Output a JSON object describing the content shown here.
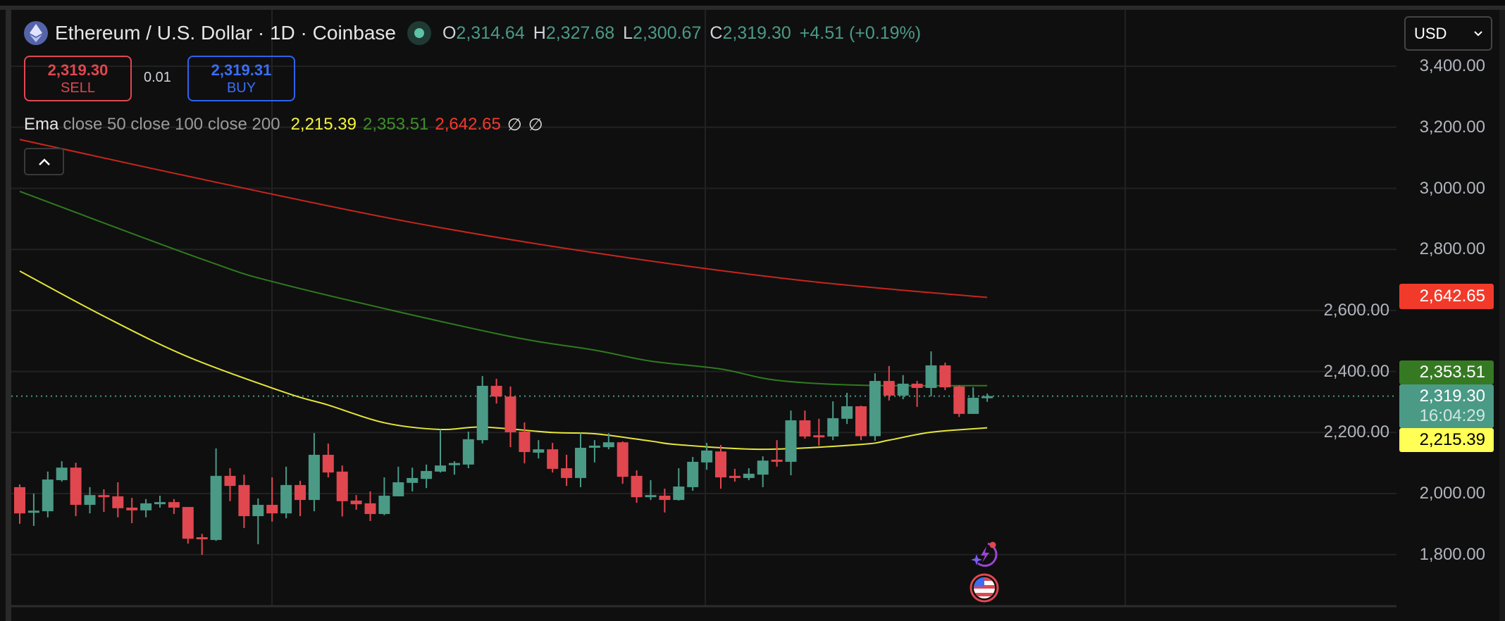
{
  "header": {
    "title": "Ethereum / U.S. Dollar · 1D · Coinbase",
    "ohlc": [
      {
        "key": "O",
        "value": "2,314.64"
      },
      {
        "key": "H",
        "value": "2,327.68"
      },
      {
        "key": "L",
        "value": "2,300.67"
      },
      {
        "key": "C",
        "value": "2,319.30"
      }
    ],
    "change": "+4.51 (+0.19%)"
  },
  "trade": {
    "sell_price": "2,319.30",
    "sell_label": "SELL",
    "spread": "0.01",
    "buy_price": "2,319.31",
    "buy_label": "BUY"
  },
  "ema_legend": {
    "name": "Ema",
    "params": "close 50 close 100 close 200",
    "values": [
      "2,215.39",
      "2,353.51",
      "2,642.65"
    ],
    "extra": [
      "∅",
      "∅"
    ]
  },
  "collapse_icon": "chevron-up",
  "currency": {
    "selected": "USD"
  },
  "price_axis": {
    "ticks": [
      "3,400.00",
      "3,200.00",
      "3,000.00",
      "2,800.00",
      "2,600.00",
      "2,400.00",
      "2,200.00",
      "2,000.00",
      "1,800.00"
    ]
  },
  "badges": {
    "ema200": "2,642.65",
    "ema100": "2,353.51",
    "last_price": "2,319.30",
    "countdown": "16:04:29",
    "ema50": "2,215.39"
  },
  "colors": {
    "up": "#4a9a86",
    "down": "#e0474f",
    "ema50": "#e5e53a",
    "ema100": "#2f7a1f",
    "ema200": "#c7261e",
    "badge_ema200": "#f23a2a",
    "badge_ema100": "#357a22",
    "badge_last": "#4a9a86",
    "badge_ema50": "#ffff56"
  },
  "chart_data": {
    "type": "candlestick",
    "interval": "1D",
    "ylim": [
      1600,
      3450
    ],
    "last_price": 2319.3,
    "candles_ohlc": [
      [
        2021,
        2030,
        1901,
        1935
      ],
      [
        1938,
        2000,
        1894,
        1944
      ],
      [
        1942,
        2072,
        1922,
        2046
      ],
      [
        2044,
        2106,
        2039,
        2085
      ],
      [
        2085,
        2101,
        1926,
        1963
      ],
      [
        1963,
        2021,
        1935,
        1995
      ],
      [
        1995,
        2014,
        1940,
        1989
      ],
      [
        1991,
        2037,
        1922,
        1952
      ],
      [
        1954,
        1986,
        1903,
        1945
      ],
      [
        1945,
        1982,
        1922,
        1968
      ],
      [
        1966,
        1993,
        1954,
        1972
      ],
      [
        1972,
        1982,
        1933,
        1954
      ],
      [
        1956,
        1956,
        1836,
        1852
      ],
      [
        1857,
        1868,
        1799,
        1852
      ],
      [
        1848,
        2148,
        1845,
        2058
      ],
      [
        2058,
        2083,
        1975,
        2025
      ],
      [
        2028,
        2062,
        1887,
        1926
      ],
      [
        1926,
        1984,
        1834,
        1963
      ],
      [
        1963,
        2053,
        1908,
        1935
      ],
      [
        1935,
        2088,
        1919,
        2028
      ],
      [
        2028,
        2042,
        1926,
        1979
      ],
      [
        1979,
        2198,
        1942,
        2127
      ],
      [
        2127,
        2164,
        2053,
        2069
      ],
      [
        2072,
        2092,
        1925,
        1975
      ],
      [
        1977,
        1995,
        1947,
        1965
      ],
      [
        1968,
        2007,
        1910,
        1933
      ],
      [
        1933,
        2053,
        1929,
        1993
      ],
      [
        1991,
        2088,
        1991,
        2037
      ],
      [
        2035,
        2085,
        2007,
        2051
      ],
      [
        2048,
        2095,
        2018,
        2074
      ],
      [
        2072,
        2210,
        2069,
        2092
      ],
      [
        2095,
        2106,
        2062,
        2100
      ],
      [
        2095,
        2203,
        2083,
        2178
      ],
      [
        2175,
        2385,
        2164,
        2353
      ],
      [
        2353,
        2376,
        2295,
        2318
      ],
      [
        2318,
        2351,
        2152,
        2201
      ],
      [
        2203,
        2233,
        2099,
        2136
      ],
      [
        2134,
        2175,
        2115,
        2145
      ],
      [
        2145,
        2166,
        2069,
        2081
      ],
      [
        2083,
        2127,
        2025,
        2051
      ],
      [
        2051,
        2198,
        2021,
        2150
      ],
      [
        2152,
        2175,
        2102,
        2157
      ],
      [
        2152,
        2198,
        2145,
        2168
      ],
      [
        2168,
        2171,
        2032,
        2055
      ],
      [
        2058,
        2076,
        1970,
        1988
      ],
      [
        1991,
        2044,
        1979,
        1995
      ],
      [
        1993,
        2016,
        1938,
        1979
      ],
      [
        1979,
        2083,
        1977,
        2023
      ],
      [
        2021,
        2120,
        2009,
        2104
      ],
      [
        2102,
        2166,
        2078,
        2141
      ],
      [
        2138,
        2159,
        2016,
        2053
      ],
      [
        2058,
        2081,
        2039,
        2053
      ],
      [
        2051,
        2083,
        2044,
        2065
      ],
      [
        2062,
        2122,
        2021,
        2108
      ],
      [
        2111,
        2175,
        2088,
        2106
      ],
      [
        2104,
        2272,
        2060,
        2240
      ],
      [
        2240,
        2272,
        2180,
        2187
      ],
      [
        2191,
        2245,
        2157,
        2187
      ],
      [
        2187,
        2302,
        2175,
        2247
      ],
      [
        2245,
        2330,
        2228,
        2286
      ],
      [
        2286,
        2288,
        2175,
        2188
      ],
      [
        2188,
        2394,
        2173,
        2369
      ],
      [
        2369,
        2418,
        2305,
        2321
      ],
      [
        2321,
        2388,
        2309,
        2360
      ],
      [
        2360,
        2369,
        2284,
        2346
      ],
      [
        2346,
        2466,
        2318,
        2420
      ],
      [
        2420,
        2429,
        2339,
        2348
      ],
      [
        2351,
        2355,
        2251,
        2261
      ],
      [
        2261,
        2348,
        2261,
        2314
      ],
      [
        2314.64,
        2327.68,
        2300.67,
        2319.3
      ]
    ],
    "ema_series": [
      {
        "name": "close 50",
        "points": [
          [
            0,
            2729
          ],
          [
            6,
            2581
          ],
          [
            12,
            2448
          ],
          [
            19,
            2330
          ],
          [
            22,
            2290
          ],
          [
            26,
            2232
          ],
          [
            30,
            2210
          ],
          [
            33,
            2218
          ],
          [
            38,
            2200
          ],
          [
            41,
            2196
          ],
          [
            45,
            2172
          ],
          [
            47,
            2160
          ],
          [
            53,
            2145
          ],
          [
            60,
            2161
          ],
          [
            62,
            2175
          ],
          [
            65,
            2201
          ],
          [
            69,
            2215.39
          ]
        ]
      },
      {
        "name": "close 100",
        "points": [
          [
            0,
            2990
          ],
          [
            13,
            2768
          ],
          [
            19,
            2683
          ],
          [
            34,
            2524
          ],
          [
            41,
            2470
          ],
          [
            45,
            2434
          ],
          [
            50,
            2408
          ],
          [
            54,
            2371
          ],
          [
            60,
            2355
          ],
          [
            69,
            2353.51
          ]
        ]
      },
      {
        "name": "close 200",
        "points": [
          [
            0,
            3160
          ],
          [
            14,
            3020
          ],
          [
            28,
            2888
          ],
          [
            42,
            2782
          ],
          [
            56,
            2697
          ],
          [
            69,
            2642.65
          ]
        ]
      }
    ]
  }
}
